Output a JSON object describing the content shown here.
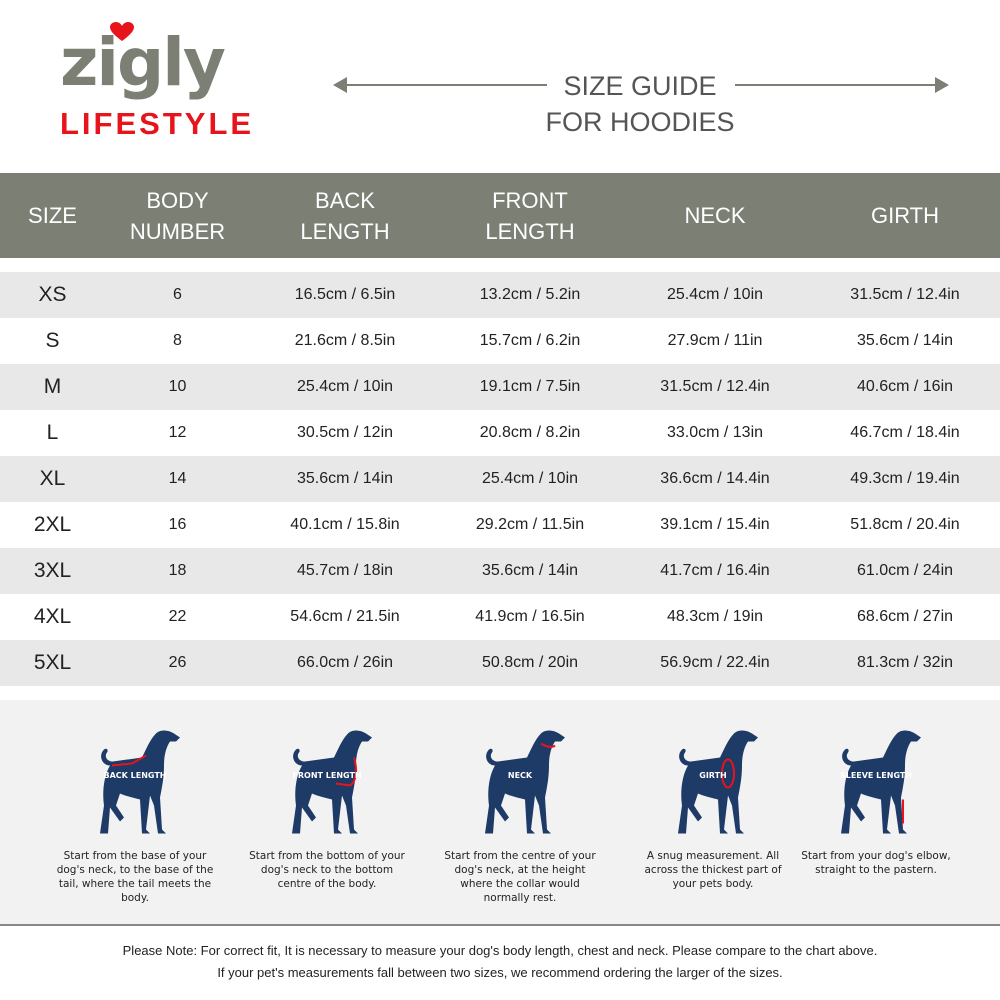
{
  "brand": {
    "logo_word": "zigly",
    "logo_sub": "LIFESTYLE",
    "logo_gray": "#7b7f74",
    "logo_red": "#e8141c"
  },
  "title": {
    "line1": "SIZE GUIDE",
    "line2": "FOR HOODIES"
  },
  "table": {
    "headers": [
      "SIZE",
      "BODY NUMBER",
      "BACK LENGTH",
      "FRONT LENGTH",
      "NECK",
      "GIRTH"
    ],
    "rows": [
      [
        "XS",
        "6",
        "16.5cm / 6.5in",
        "13.2cm / 5.2in",
        "25.4cm / 10in",
        "31.5cm / 12.4in"
      ],
      [
        "S",
        "8",
        "21.6cm / 8.5in",
        "15.7cm / 6.2in",
        "27.9cm / 11in",
        "35.6cm / 14in"
      ],
      [
        "M",
        "10",
        "25.4cm / 10in",
        "19.1cm / 7.5in",
        "31.5cm / 12.4in",
        "40.6cm / 16in"
      ],
      [
        "L",
        "12",
        "30.5cm / 12in",
        "20.8cm / 8.2in",
        "33.0cm / 13in",
        "46.7cm / 18.4in"
      ],
      [
        "XL",
        "14",
        "35.6cm / 14in",
        "25.4cm / 10in",
        "36.6cm / 14.4in",
        "49.3cm / 19.4in"
      ],
      [
        "2XL",
        "16",
        "40.1cm / 15.8in",
        "29.2cm / 11.5in",
        "39.1cm / 15.4in",
        "51.8cm / 20.4in"
      ],
      [
        "3XL",
        "18",
        "45.7cm / 18in",
        "35.6cm / 14in",
        "41.7cm / 16.4in",
        "61.0cm / 24in"
      ],
      [
        "4XL",
        "22",
        "54.6cm / 21.5in",
        "41.9cm / 16.5in",
        "48.3cm / 19in",
        "68.6cm / 27in"
      ],
      [
        "5XL",
        "26",
        "66.0cm / 26in",
        "50.8cm / 20in",
        "56.9cm / 22.4in",
        "81.3cm / 32in"
      ]
    ]
  },
  "measures": [
    {
      "label": "BACK LENGTH",
      "caption": "Start from the base of your dog's neck, to the base of the tail, where the tail meets the body."
    },
    {
      "label": "FRONT LENGTH",
      "caption": "Start from the bottom of your dog's neck to the bottom centre of the body."
    },
    {
      "label": "NECK",
      "caption": "Start from the centre of your dog's neck, at the height where the collar would normally rest."
    },
    {
      "label": "GIRTH",
      "caption": "A snug measurement. All across the thickest part of your pets body."
    },
    {
      "label": "SLEEVE LENGTH",
      "caption": "Start from your dog's elbow, straight to the pastern."
    }
  ],
  "note": {
    "line1": "Please Note: For correct fit, It is necessary to measure your dog's body length, chest and neck. Please compare to the chart above.",
    "line2": "If your pet's measurements fall between two sizes, we recommend ordering the larger of the sizes."
  },
  "colors": {
    "header": "#7b7f74",
    "dog": "#1e3a66",
    "marker": "#e8141c"
  }
}
